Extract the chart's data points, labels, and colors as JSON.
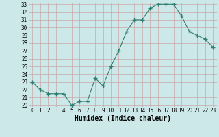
{
  "x": [
    0,
    1,
    2,
    3,
    4,
    5,
    6,
    7,
    8,
    9,
    10,
    11,
    12,
    13,
    14,
    15,
    16,
    17,
    18,
    19,
    20,
    21,
    22,
    23
  ],
  "y": [
    23.0,
    22.0,
    21.5,
    21.5,
    21.5,
    20.0,
    20.5,
    20.5,
    23.5,
    22.5,
    25.0,
    27.0,
    29.5,
    31.0,
    31.0,
    32.5,
    33.0,
    33.0,
    33.0,
    31.5,
    29.5,
    29.0,
    28.5,
    27.5
  ],
  "line_color": "#2e7d6e",
  "marker": "+",
  "marker_size": 4,
  "bg_color": "#cce8e8",
  "grid_color": "#c8a8a8",
  "xlabel": "Humidex (Indice chaleur)",
  "ylim": [
    20,
    33
  ],
  "xlim": [
    -0.5,
    23.5
  ],
  "yticks": [
    20,
    21,
    22,
    23,
    24,
    25,
    26,
    27,
    28,
    29,
    30,
    31,
    32,
    33
  ],
  "xticks": [
    0,
    1,
    2,
    3,
    4,
    5,
    6,
    7,
    8,
    9,
    10,
    11,
    12,
    13,
    14,
    15,
    16,
    17,
    18,
    19,
    20,
    21,
    22,
    23
  ],
  "tick_fontsize": 5.5,
  "label_fontsize": 7
}
